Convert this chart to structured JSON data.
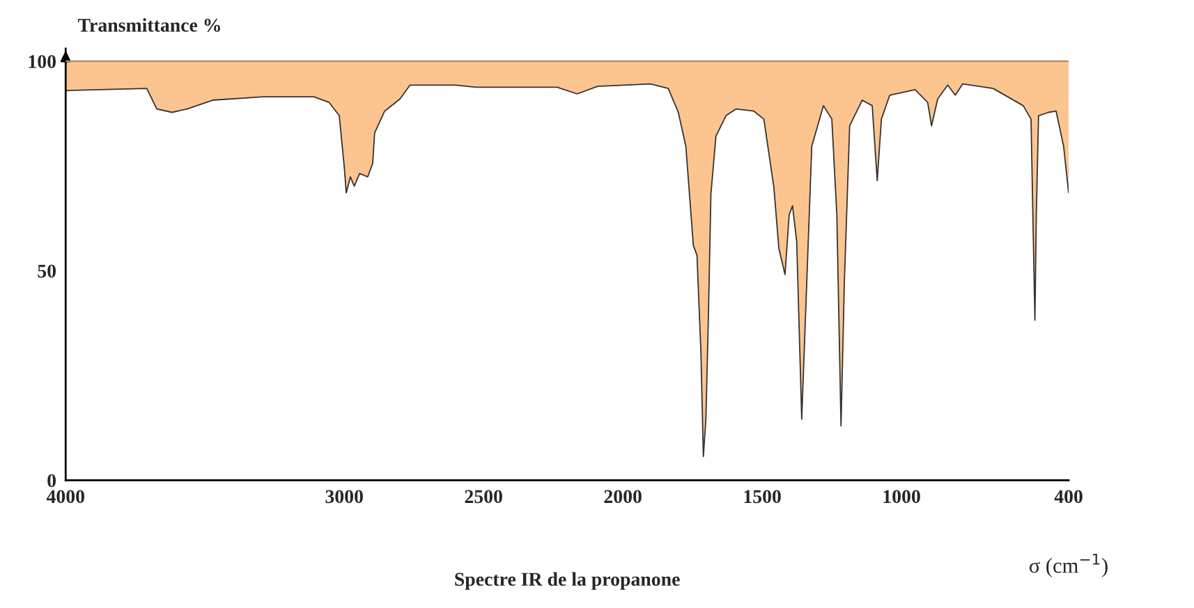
{
  "chart_data": {
    "type": "line",
    "title": "Spectre IR de la propanone",
    "xlabel": "σ (cm$^{−1}$)",
    "ylabel": "Transmittance %",
    "x": [
      4000,
      3709,
      3673,
      3618,
      3564,
      3473,
      3291,
      3109,
      3055,
      3018,
      3000,
      2993,
      2978,
      2964,
      2945,
      2916,
      2898,
      2891,
      2855,
      2800,
      2764,
      2600,
      2527,
      2236,
      2164,
      2091,
      1901,
      1837,
      1801,
      1774,
      1747,
      1734,
      1720,
      1711,
      1702,
      1693,
      1684,
      1666,
      1630,
      1594,
      1530,
      1494,
      1458,
      1440,
      1418,
      1403,
      1391,
      1376,
      1358,
      1340,
      1322,
      1280,
      1250,
      1232,
      1217,
      1205,
      1186,
      1141,
      1105,
      1087,
      1072,
      1042,
      951,
      906,
      892,
      870,
      834,
      807,
      780,
      671,
      563,
      535,
      526,
      521,
      516,
      508,
      472,
      445,
      418,
      400
    ],
    "series": [
      {
        "color": "#333333",
        "upper": [
          100,
          100,
          100,
          100,
          100,
          100,
          100,
          100,
          100,
          100,
          100,
          100,
          100,
          100,
          100,
          100,
          100,
          100,
          100,
          100,
          100,
          100,
          100,
          100,
          100,
          100,
          100,
          100,
          100,
          100,
          100,
          100,
          100,
          100,
          100,
          100,
          100,
          100,
          100,
          100,
          100,
          100,
          100,
          100,
          100,
          100,
          100,
          100,
          100,
          100,
          100,
          100,
          100,
          100,
          100,
          100,
          100,
          100,
          100,
          100,
          100,
          100,
          100,
          100,
          100,
          100,
          100,
          100,
          100,
          100,
          100,
          100,
          100,
          100,
          100,
          100,
          100,
          100,
          100,
          100
        ],
        "lower": [
          93,
          93.5,
          88.6,
          87.8,
          88.6,
          90.7,
          91.5,
          91.5,
          90.2,
          87,
          74.8,
          68.6,
          72.4,
          70.2,
          73.2,
          72.4,
          75.6,
          82.9,
          88.1,
          91,
          94.3,
          94.3,
          93.8,
          93.8,
          92.2,
          94,
          94.6,
          93.5,
          87.8,
          79.7,
          56,
          53.7,
          30.9,
          5.7,
          14.6,
          39,
          68.3,
          82.1,
          87,
          88.6,
          88.1,
          86.2,
          69.9,
          55.3,
          49.1,
          63.4,
          65.5,
          56.9,
          14.6,
          47.2,
          79.7,
          89.4,
          86.2,
          63.4,
          13,
          47.2,
          84.6,
          90.7,
          89.4,
          71.5,
          86.2,
          91.9,
          93.2,
          90.2,
          84.6,
          91,
          94.3,
          91.9,
          94.6,
          93.5,
          89.4,
          86.2,
          55.3,
          38.2,
          63.4,
          87,
          87.8,
          88.1,
          79.7,
          68.6
        ],
        "values": [
          93,
          93.5,
          88.6,
          87.8,
          88.6,
          90.7,
          91.5,
          91.5,
          90.2,
          87,
          74.8,
          68.6,
          72.4,
          70.2,
          73.2,
          72.4,
          75.6,
          82.9,
          88.1,
          91,
          94.3,
          94.3,
          93.8,
          93.8,
          92.2,
          94,
          94.6,
          93.5,
          87.8,
          79.7,
          56,
          53.7,
          30.9,
          5.7,
          14.6,
          39,
          68.3,
          82.1,
          87,
          88.6,
          88.1,
          86.2,
          69.9,
          55.3,
          49.1,
          63.4,
          65.5,
          56.9,
          14.6,
          47.2,
          79.7,
          89.4,
          86.2,
          63.4,
          13,
          47.2,
          84.6,
          90.7,
          89.4,
          71.5,
          86.2,
          91.9,
          93.2,
          90.2,
          84.6,
          91,
          94.3,
          91.9,
          94.6,
          93.5,
          89.4,
          86.2,
          55.3,
          38.2,
          63.4,
          87,
          87.8,
          88.1,
          79.7,
          68.6
        ]
      }
    ],
    "ref_lines": [
      {
        "axis": "y",
        "value": 100,
        "color": "#b08c6c"
      }
    ],
    "xlim": [
      4000,
      400
    ],
    "ylim": [
      0,
      103
    ],
    "xticks": [
      4000,
      3000,
      2500,
      2000,
      1500,
      1000,
      400
    ],
    "yticks": [
      0,
      50,
      100
    ],
    "grid": false,
    "legend": false
  }
}
